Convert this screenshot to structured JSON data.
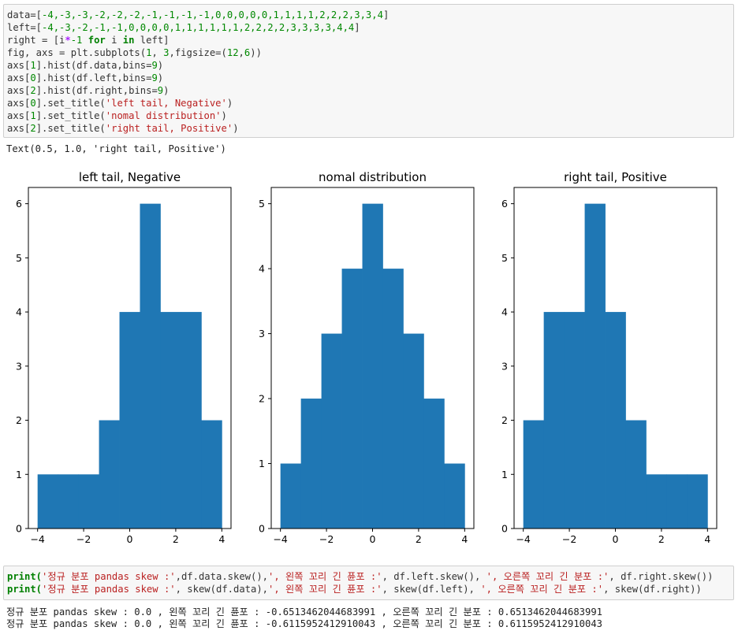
{
  "code_cell_1": {
    "lines": [
      [
        {
          "t": "data=[",
          "c": "plain"
        },
        {
          "t": "-4,-3,-3,-2,-2,-2,-1,-1,-1,-1,0,0,0,0,0,1,1,1,1,2,2,2,3,3,4",
          "c": "num"
        },
        {
          "t": "]",
          "c": "plain"
        }
      ],
      [
        {
          "t": "left=[",
          "c": "plain"
        },
        {
          "t": "-4,-3,-2,-1,-1,0,0,0,0,1,1,1,1,1,1,2,2,2,2,3,3,3,3,4,4",
          "c": "num"
        },
        {
          "t": "]",
          "c": "plain"
        }
      ],
      [
        {
          "t": "right = [i",
          "c": "plain"
        },
        {
          "t": "*",
          "c": "op"
        },
        {
          "t": "-1",
          "c": "num"
        },
        {
          "t": " ",
          "c": "plain"
        },
        {
          "t": "for",
          "c": "kw"
        },
        {
          "t": " i ",
          "c": "plain"
        },
        {
          "t": "in",
          "c": "kw"
        },
        {
          "t": " left]",
          "c": "plain"
        }
      ],
      [
        {
          "t": "fig, axs = plt.subplots(",
          "c": "plain"
        },
        {
          "t": "1",
          "c": "num"
        },
        {
          "t": ", ",
          "c": "plain"
        },
        {
          "t": "3",
          "c": "num"
        },
        {
          "t": ",figsize=(",
          "c": "plain"
        },
        {
          "t": "12",
          "c": "num"
        },
        {
          "t": ",",
          "c": "plain"
        },
        {
          "t": "6",
          "c": "num"
        },
        {
          "t": "))",
          "c": "plain"
        }
      ],
      [
        {
          "t": "axs[",
          "c": "plain"
        },
        {
          "t": "1",
          "c": "num"
        },
        {
          "t": "].hist(df.data,bins=",
          "c": "plain"
        },
        {
          "t": "9",
          "c": "num"
        },
        {
          "t": ")",
          "c": "plain"
        }
      ],
      [
        {
          "t": "axs[",
          "c": "plain"
        },
        {
          "t": "0",
          "c": "num"
        },
        {
          "t": "].hist(df.left,bins=",
          "c": "plain"
        },
        {
          "t": "9",
          "c": "num"
        },
        {
          "t": ")",
          "c": "plain"
        }
      ],
      [
        {
          "t": "axs[",
          "c": "plain"
        },
        {
          "t": "2",
          "c": "num"
        },
        {
          "t": "].hist(df.right,bins=",
          "c": "plain"
        },
        {
          "t": "9",
          "c": "num"
        },
        {
          "t": ")",
          "c": "plain"
        }
      ],
      [
        {
          "t": "axs[",
          "c": "plain"
        },
        {
          "t": "0",
          "c": "num"
        },
        {
          "t": "].set_title(",
          "c": "plain"
        },
        {
          "t": "'left tail, Negative'",
          "c": "str"
        },
        {
          "t": ")",
          "c": "plain"
        }
      ],
      [
        {
          "t": "axs[",
          "c": "plain"
        },
        {
          "t": "1",
          "c": "num"
        },
        {
          "t": "].set_title(",
          "c": "plain"
        },
        {
          "t": "'nomal distribution'",
          "c": "str"
        },
        {
          "t": ")",
          "c": "plain"
        }
      ],
      [
        {
          "t": "axs[",
          "c": "plain"
        },
        {
          "t": "2",
          "c": "num"
        },
        {
          "t": "].set_title(",
          "c": "plain"
        },
        {
          "t": "'right tail, Positive'",
          "c": "str"
        },
        {
          "t": ")",
          "c": "plain"
        }
      ]
    ]
  },
  "output_text_1": "Text(0.5, 1.0, 'right tail, Positive')",
  "chart_data": [
    {
      "type": "bar",
      "title": "left tail, Negative",
      "bin_edges": [
        -4,
        -3.111,
        -2.222,
        -1.333,
        -0.444,
        0.444,
        1.333,
        2.222,
        3.111,
        4
      ],
      "values": [
        1,
        1,
        1,
        2,
        4,
        6,
        4,
        4,
        2
      ],
      "xlim": [
        -4.4,
        4.4
      ],
      "ylim": [
        0,
        6.3
      ],
      "xticks": [
        -4,
        -2,
        0,
        2,
        4
      ],
      "xtick_labels": [
        "−4",
        "−2",
        "0",
        "2",
        "4"
      ],
      "yticks": [
        0,
        1,
        2,
        3,
        4,
        5,
        6
      ],
      "ytick_labels": [
        "0",
        "1",
        "2",
        "3",
        "4",
        "5",
        "6"
      ],
      "color": "#1f77b4"
    },
    {
      "type": "bar",
      "title": "nomal distribution",
      "bin_edges": [
        -4,
        -3.111,
        -2.222,
        -1.333,
        -0.444,
        0.444,
        1.333,
        2.222,
        3.111,
        4
      ],
      "values": [
        1,
        2,
        3,
        4,
        5,
        4,
        3,
        2,
        1
      ],
      "xlim": [
        -4.4,
        4.4
      ],
      "ylim": [
        0,
        5.25
      ],
      "xticks": [
        -4,
        -2,
        0,
        2,
        4
      ],
      "xtick_labels": [
        "−4",
        "−2",
        "0",
        "2",
        "4"
      ],
      "yticks": [
        0,
        1,
        2,
        3,
        4,
        5
      ],
      "ytick_labels": [
        "0",
        "1",
        "2",
        "3",
        "4",
        "5"
      ],
      "color": "#1f77b4"
    },
    {
      "type": "bar",
      "title": "right tail, Positive",
      "bin_edges": [
        -4,
        -3.111,
        -2.222,
        -1.333,
        -0.444,
        0.444,
        1.333,
        2.222,
        3.111,
        4
      ],
      "values": [
        2,
        4,
        4,
        6,
        4,
        2,
        1,
        1,
        1
      ],
      "xlim": [
        -4.4,
        4.4
      ],
      "ylim": [
        0,
        6.3
      ],
      "xticks": [
        -4,
        -2,
        0,
        2,
        4
      ],
      "xtick_labels": [
        "−4",
        "−2",
        "0",
        "2",
        "4"
      ],
      "yticks": [
        0,
        1,
        2,
        3,
        4,
        5,
        6
      ],
      "ytick_labels": [
        "0",
        "1",
        "2",
        "3",
        "4",
        "5",
        "6"
      ],
      "color": "#1f77b4"
    }
  ],
  "code_cell_2": {
    "lines": [
      [
        {
          "t": "print(",
          "c": "kw"
        },
        {
          "t": "'정규 분포 pandas skew :'",
          "c": "str"
        },
        {
          "t": ",df.data.skew(),",
          "c": "plain"
        },
        {
          "t": "', 왼쪽 꼬리 긴 퓬포 :'",
          "c": "str"
        },
        {
          "t": ", df.left.skew(), ",
          "c": "plain"
        },
        {
          "t": "', 오른쪽 꼬리 긴 분포 :'",
          "c": "str"
        },
        {
          "t": ", df.right.skew())",
          "c": "plain"
        }
      ],
      [
        {
          "t": "print(",
          "c": "kw"
        },
        {
          "t": "'정규 분포 pandas skew :'",
          "c": "str"
        },
        {
          "t": ", skew(df.data),",
          "c": "plain"
        },
        {
          "t": "', 왼쪽 꼬리 긴 퓬포 :'",
          "c": "str"
        },
        {
          "t": ", skew(df.left), ",
          "c": "plain"
        },
        {
          "t": "', 오른쪽 꼬리 긴 분포 :'",
          "c": "str"
        },
        {
          "t": ", skew(df.right))",
          "c": "plain"
        }
      ]
    ]
  },
  "output_text_2": [
    "정규 분포 pandas skew : 0.0 , 왼쪽 꼬리 긴 퓬포 : -0.6513462044683991 , 오른쪽 꼬리 긴 분포 : 0.6513462044683991",
    "정규 분포 pandas skew : 0.0 , 왼쪽 꼬리 긴 퓬포 : -0.6115952412910043 , 오른쪽 꼬리 긴 분포 : 0.6115952412910043"
  ]
}
